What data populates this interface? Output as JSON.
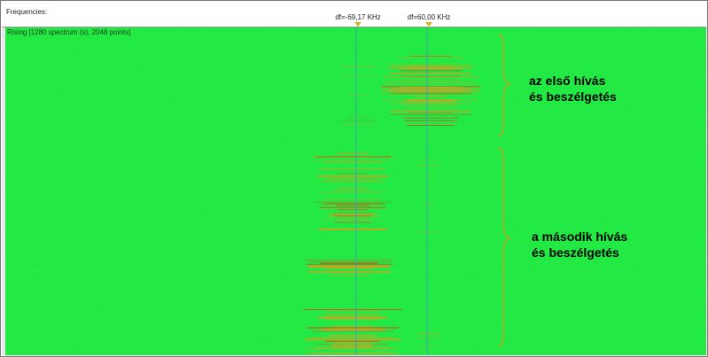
{
  "ruler": {
    "label": "Frequencies:",
    "marker_left_text": "df=-69,17 KHz",
    "marker_right_text": "df=60,00 KHz"
  },
  "spectrogram": {
    "label": "Rising [1280 spectrum (s), 2048 points]",
    "background_color": "#1ee83a",
    "cursor_line_color": "#3aa0c0",
    "signal_color": "#d8a020"
  },
  "annotations": {
    "first_call_line1": "az első hívás",
    "first_call_line2": "és beszélgetés",
    "second_call_line1": "a második hívás",
    "second_call_line2": "és beszélgetés"
  }
}
